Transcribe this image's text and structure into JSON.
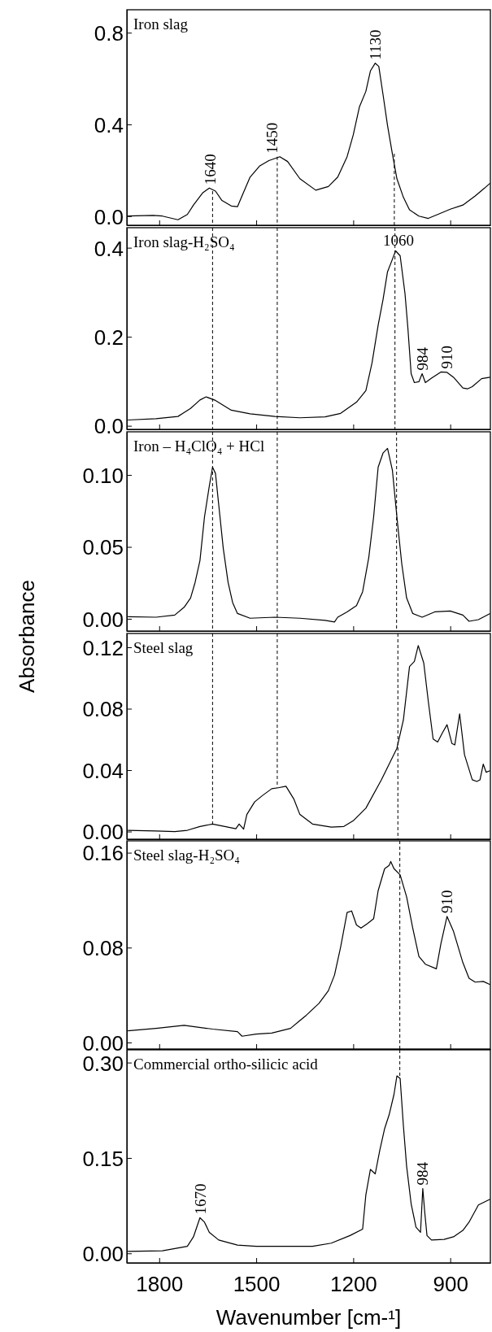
{
  "chart_data": [
    {
      "type": "line",
      "title": "Iron slag",
      "xlim": [
        1900,
        776
      ],
      "ylim": [
        -0.04,
        0.9
      ],
      "xticks": [
        1800,
        1500,
        1200,
        900
      ],
      "yticks": [
        {
          "value": 0,
          "label": "0.0"
        },
        {
          "value": 0.4,
          "label": "0.4"
        },
        {
          "value": 0.8,
          "label": "0.8"
        }
      ],
      "tick_labels": "y",
      "line_style": "solid",
      "series": [
        {
          "color": "#000000",
          "x": [
            1897,
            1819,
            1790,
            1742,
            1713,
            1694,
            1665,
            1645,
            1626,
            1606,
            1577,
            1558,
            1544,
            1519,
            1490,
            1461,
            1427,
            1403,
            1365,
            1316,
            1277,
            1248,
            1219,
            1200,
            1181,
            1161,
            1147,
            1132,
            1121,
            1108,
            1094,
            1079,
            1065,
            1045,
            1026,
            997,
            968,
            939,
            900,
            861,
            823,
            794,
            777
          ],
          "values": [
            0,
            0.003,
            0,
            -0.016,
            0.007,
            0.048,
            0.102,
            0.122,
            0.109,
            0.068,
            0.044,
            0.041,
            0.088,
            0.17,
            0.218,
            0.242,
            0.259,
            0.238,
            0.163,
            0.113,
            0.129,
            0.17,
            0.259,
            0.354,
            0.476,
            0.544,
            0.633,
            0.667,
            0.653,
            0.531,
            0.395,
            0.272,
            0.163,
            0.082,
            0.027,
            0,
            -0.01,
            0.007,
            0.03,
            0.048,
            0.088,
            0.122,
            0.143
          ]
        }
      ],
      "ref_lines": [
        {
          "axis": "x",
          "value": 1073,
          "color": "#000000",
          "line_style": "dashed"
        },
        {
          "axis": "x",
          "value": 1635,
          "color": "#000000",
          "line_style": "dashed"
        },
        {
          "axis": "x",
          "value": 1435,
          "color": "#000000",
          "line_style": "dashed"
        }
      ],
      "annotations": [
        {
          "text": "1640",
          "x": 1640,
          "y": 0.122
        },
        {
          "text": "1450",
          "x": 1450,
          "y": 0.259
        },
        {
          "text": "1130",
          "x": 1130,
          "y": 0.667
        }
      ]
    },
    {
      "type": "line",
      "title": "Iron slag-H₂SO₄",
      "xlim": [
        1900,
        776
      ],
      "ylim": [
        -0.008,
        0.445
      ],
      "xticks": [
        1800,
        1500,
        1200,
        900
      ],
      "yticks": [
        {
          "value": 0,
          "label": "0.0"
        },
        {
          "value": 0.2,
          "label": "0.2"
        },
        {
          "value": 0.4,
          "label": "0.4"
        }
      ],
      "tick_labels": "y",
      "line_style": "solid",
      "series": [
        {
          "color": "#000000",
          "x": [
            1897,
            1810,
            1742,
            1703,
            1674,
            1655,
            1626,
            1577,
            1519,
            1442,
            1365,
            1287,
            1239,
            1190,
            1161,
            1142,
            1123,
            1108,
            1094,
            1079,
            1069,
            1055,
            1040,
            1031,
            1021,
            1011,
            997,
            987,
            977,
            958,
            929,
            910,
            890,
            861,
            847,
            832,
            803,
            777
          ],
          "values": [
            0.013,
            0.016,
            0.021,
            0.039,
            0.058,
            0.065,
            0.057,
            0.035,
            0.027,
            0.021,
            0.018,
            0.02,
            0.028,
            0.053,
            0.079,
            0.141,
            0.226,
            0.283,
            0.346,
            0.374,
            0.393,
            0.382,
            0.297,
            0.219,
            0.117,
            0.097,
            0.099,
            0.117,
            0.097,
            0.107,
            0.121,
            0.12,
            0.109,
            0.085,
            0.083,
            0.088,
            0.106,
            0.109
          ]
        }
      ],
      "ref_lines": [
        {
          "axis": "x",
          "value": 1071,
          "color": "#000000",
          "line_style": "dashed"
        },
        {
          "axis": "x",
          "value": 1635,
          "color": "#000000",
          "line_style": "dashed"
        },
        {
          "axis": "x",
          "value": 1435,
          "color": "#000000",
          "line_style": "dashed"
        }
      ],
      "annotations": [
        {
          "text": "1060",
          "x": 1060,
          "y": 0.393
        },
        {
          "text": "984",
          "x": 984,
          "y": 0.117
        },
        {
          "text": "910",
          "x": 910,
          "y": 0.121
        }
      ]
    },
    {
      "type": "line",
      "title": "Iron – H₄ClO₄ + HCl",
      "xlim": [
        1900,
        776
      ],
      "ylim": [
        -0.0085,
        0.13
      ],
      "xticks": [
        1800,
        1500,
        1200,
        900
      ],
      "yticks": [
        {
          "value": 0,
          "label": "0.00"
        },
        {
          "value": 0.05,
          "label": "0.05"
        },
        {
          "value": 0.1,
          "label": "0.10"
        }
      ],
      "tick_labels": "y",
      "line_style": "solid",
      "series": [
        {
          "color": "#000000",
          "x": [
            1897,
            1810,
            1752,
            1723,
            1703,
            1689,
            1674,
            1660,
            1645,
            1635,
            1626,
            1616,
            1602,
            1587,
            1573,
            1558,
            1519,
            1442,
            1365,
            1287,
            1258,
            1248,
            1219,
            1190,
            1171,
            1152,
            1137,
            1123,
            1108,
            1094,
            1079,
            1065,
            1050,
            1035,
            1016,
            987,
            948,
            900,
            861,
            842,
            813,
            777
          ],
          "values": [
            0.0015,
            0.0011,
            0.0026,
            0.008,
            0.0145,
            0.0253,
            0.0405,
            0.0708,
            0.0924,
            0.1054,
            0.1011,
            0.0794,
            0.0491,
            0.0253,
            0.0113,
            0.0037,
            0.0004,
            0.0011,
            0.0004,
            -0.0011,
            -0.0022,
            0.0011,
            0.0048,
            0.0091,
            0.0188,
            0.0426,
            0.0708,
            0.1054,
            0.1152,
            0.1185,
            0.1034,
            0.0708,
            0.0383,
            0.0145,
            0.0037,
            0.0011,
            0.0048,
            0.0054,
            0.0026,
            -0.0017,
            -0.0006,
            0.0037
          ]
        }
      ],
      "ref_lines": [
        {
          "axis": "x",
          "value": 1066,
          "color": "#000000",
          "line_style": "dashed"
        },
        {
          "axis": "x",
          "value": 1635,
          "color": "#000000",
          "line_style": "dashed"
        },
        {
          "axis": "x",
          "value": 1435,
          "color": "#000000",
          "line_style": "dashed"
        }
      ]
    },
    {
      "type": "line",
      "title": "Steel slag",
      "ylabel": "Absorbance",
      "xlim": [
        1900,
        776
      ],
      "ylim": [
        -0.005,
        0.129
      ],
      "xticks": [
        1800,
        1500,
        1200,
        900
      ],
      "yticks": [
        {
          "value": 0,
          "label": "0.00"
        },
        {
          "value": 0.04,
          "label": "0.04"
        },
        {
          "value": 0.08,
          "label": "0.08"
        },
        {
          "value": 0.12,
          "label": "0.12"
        }
      ],
      "tick_labels": "y",
      "line_style": "solid",
      "series": [
        {
          "color": "#000000",
          "x": [
            1897,
            1810,
            1752,
            1713,
            1674,
            1635,
            1597,
            1563,
            1553,
            1539,
            1529,
            1505,
            1481,
            1452,
            1432,
            1408,
            1384,
            1365,
            1326,
            1268,
            1229,
            1200,
            1161,
            1113,
            1065,
            1045,
            1026,
            1011,
            999,
            982,
            968,
            953,
            939,
            924,
            910,
            895,
            886,
            871,
            856,
            832,
            818,
            808,
            798,
            789,
            777
          ],
          "values": [
            0.0008,
            0.0004,
            0,
            0.0008,
            0.0033,
            0.0049,
            0.0033,
            0.0018,
            0.0049,
            0.0016,
            0.0111,
            0.0193,
            0.0234,
            0.0279,
            0.0285,
            0.0295,
            0.0213,
            0.0111,
            0.0049,
            0.0029,
            0.0033,
            0.007,
            0.0152,
            0.0337,
            0.0542,
            0.0726,
            0.1075,
            0.1108,
            0.1211,
            0.1098,
            0.0849,
            0.0603,
            0.0583,
            0.0644,
            0.0696,
            0.0574,
            0.0564,
            0.0767,
            0.05,
            0.0337,
            0.0326,
            0.0337,
            0.0439,
            0.0386,
            0.0396
          ]
        }
      ],
      "ref_lines": [
        {
          "axis": "x",
          "value": 1062,
          "color": "#000000",
          "line_style": "dashed"
        },
        {
          "axis": "x",
          "value": 1635,
          "color": "#000000",
          "line_style": "dashed"
        },
        {
          "axis": "x",
          "value": 1435,
          "color": "#000000",
          "line_style": "dashed"
        }
      ]
    },
    {
      "type": "line",
      "title": "Steel slag-H₂SO₄",
      "xlim": [
        1900,
        776
      ],
      "ylim": [
        -0.0055,
        0.17
      ],
      "xticks": [
        1800,
        1500,
        1200,
        900
      ],
      "yticks": [
        {
          "value": 0,
          "label": "0.00"
        },
        {
          "value": 0.08,
          "label": "0.08"
        },
        {
          "value": 0.16,
          "label": "0.16"
        }
      ],
      "tick_labels": "y",
      "line_style": "solid",
      "series": [
        {
          "color": "#000000",
          "x": [
            1897,
            1810,
            1723,
            1635,
            1558,
            1544,
            1500,
            1452,
            1394,
            1365,
            1345,
            1306,
            1277,
            1258,
            1239,
            1219,
            1205,
            1190,
            1176,
            1156,
            1137,
            1123,
            1103,
            1089,
            1084,
            1074,
            1055,
            1035,
            1016,
            997,
            977,
            943,
            929,
            910,
            890,
            861,
            842,
            823,
            798,
            777
          ],
          "values": [
            0.0098,
            0.0119,
            0.0145,
            0.0113,
            0.0092,
            0.0053,
            0.0071,
            0.0079,
            0.0119,
            0.0185,
            0.023,
            0.033,
            0.0436,
            0.0568,
            0.0805,
            0.1096,
            0.1109,
            0.099,
            0.0964,
            0.1003,
            0.1043,
            0.128,
            0.1465,
            0.1492,
            0.1526,
            0.1465,
            0.1413,
            0.1228,
            0.0964,
            0.0726,
            0.066,
            0.0621,
            0.0832,
            0.1063,
            0.0937,
            0.0673,
            0.0541,
            0.0509,
            0.0515,
            0.0488
          ]
        }
      ],
      "ref_lines": [
        {
          "axis": "x",
          "value": 1056,
          "color": "#000000",
          "line_style": "dashed"
        }
      ],
      "annotations": [
        {
          "text": "910",
          "x": 910,
          "y": 0.1063
        }
      ]
    },
    {
      "type": "line",
      "title": "Commercial ortho-silicic acid",
      "xlabel": "Wavenumber [cm-¹]",
      "xlim": [
        1900,
        776
      ],
      "ylim": [
        -0.015,
        0.32
      ],
      "xticks": [
        1800,
        1500,
        1200,
        900
      ],
      "yticks": [
        {
          "value": 0,
          "label": "0.00"
        },
        {
          "value": 0.15,
          "label": "0.15"
        },
        {
          "value": 0.3,
          "label": "0.30"
        }
      ],
      "line_style": "solid",
      "series": [
        {
          "color": "#000000",
          "x": [
            1897,
            1790,
            1713,
            1694,
            1674,
            1660,
            1645,
            1616,
            1558,
            1500,
            1423,
            1326,
            1268,
            1210,
            1171,
            1161,
            1147,
            1132,
            1118,
            1103,
            1089,
            1074,
            1065,
            1055,
            1045,
            1035,
            1021,
            1006,
            992,
            985,
            979,
            972,
            958,
            919,
            890,
            861,
            842,
            813,
            777
          ],
          "values": [
            0.003,
            0.004,
            0.011,
            0.026,
            0.056,
            0.049,
            0.033,
            0.021,
            0.013,
            0.011,
            0.011,
            0.011,
            0.016,
            0.028,
            0.038,
            0.092,
            0.132,
            0.125,
            0.162,
            0.196,
            0.218,
            0.25,
            0.279,
            0.275,
            0.201,
            0.137,
            0.078,
            0.041,
            0.033,
            0.102,
            0.065,
            0.028,
            0.021,
            0.022,
            0.026,
            0.036,
            0.049,
            0.076,
            0.085
          ]
        }
      ],
      "ref_lines": [
        {
          "axis": "x",
          "value": 1056,
          "color": "#000000",
          "line_style": "dashed"
        }
      ],
      "annotations": [
        {
          "text": "1670",
          "x": 1670,
          "y": 0.056
        },
        {
          "text": "984",
          "x": 984,
          "y": 0.102
        }
      ]
    }
  ]
}
